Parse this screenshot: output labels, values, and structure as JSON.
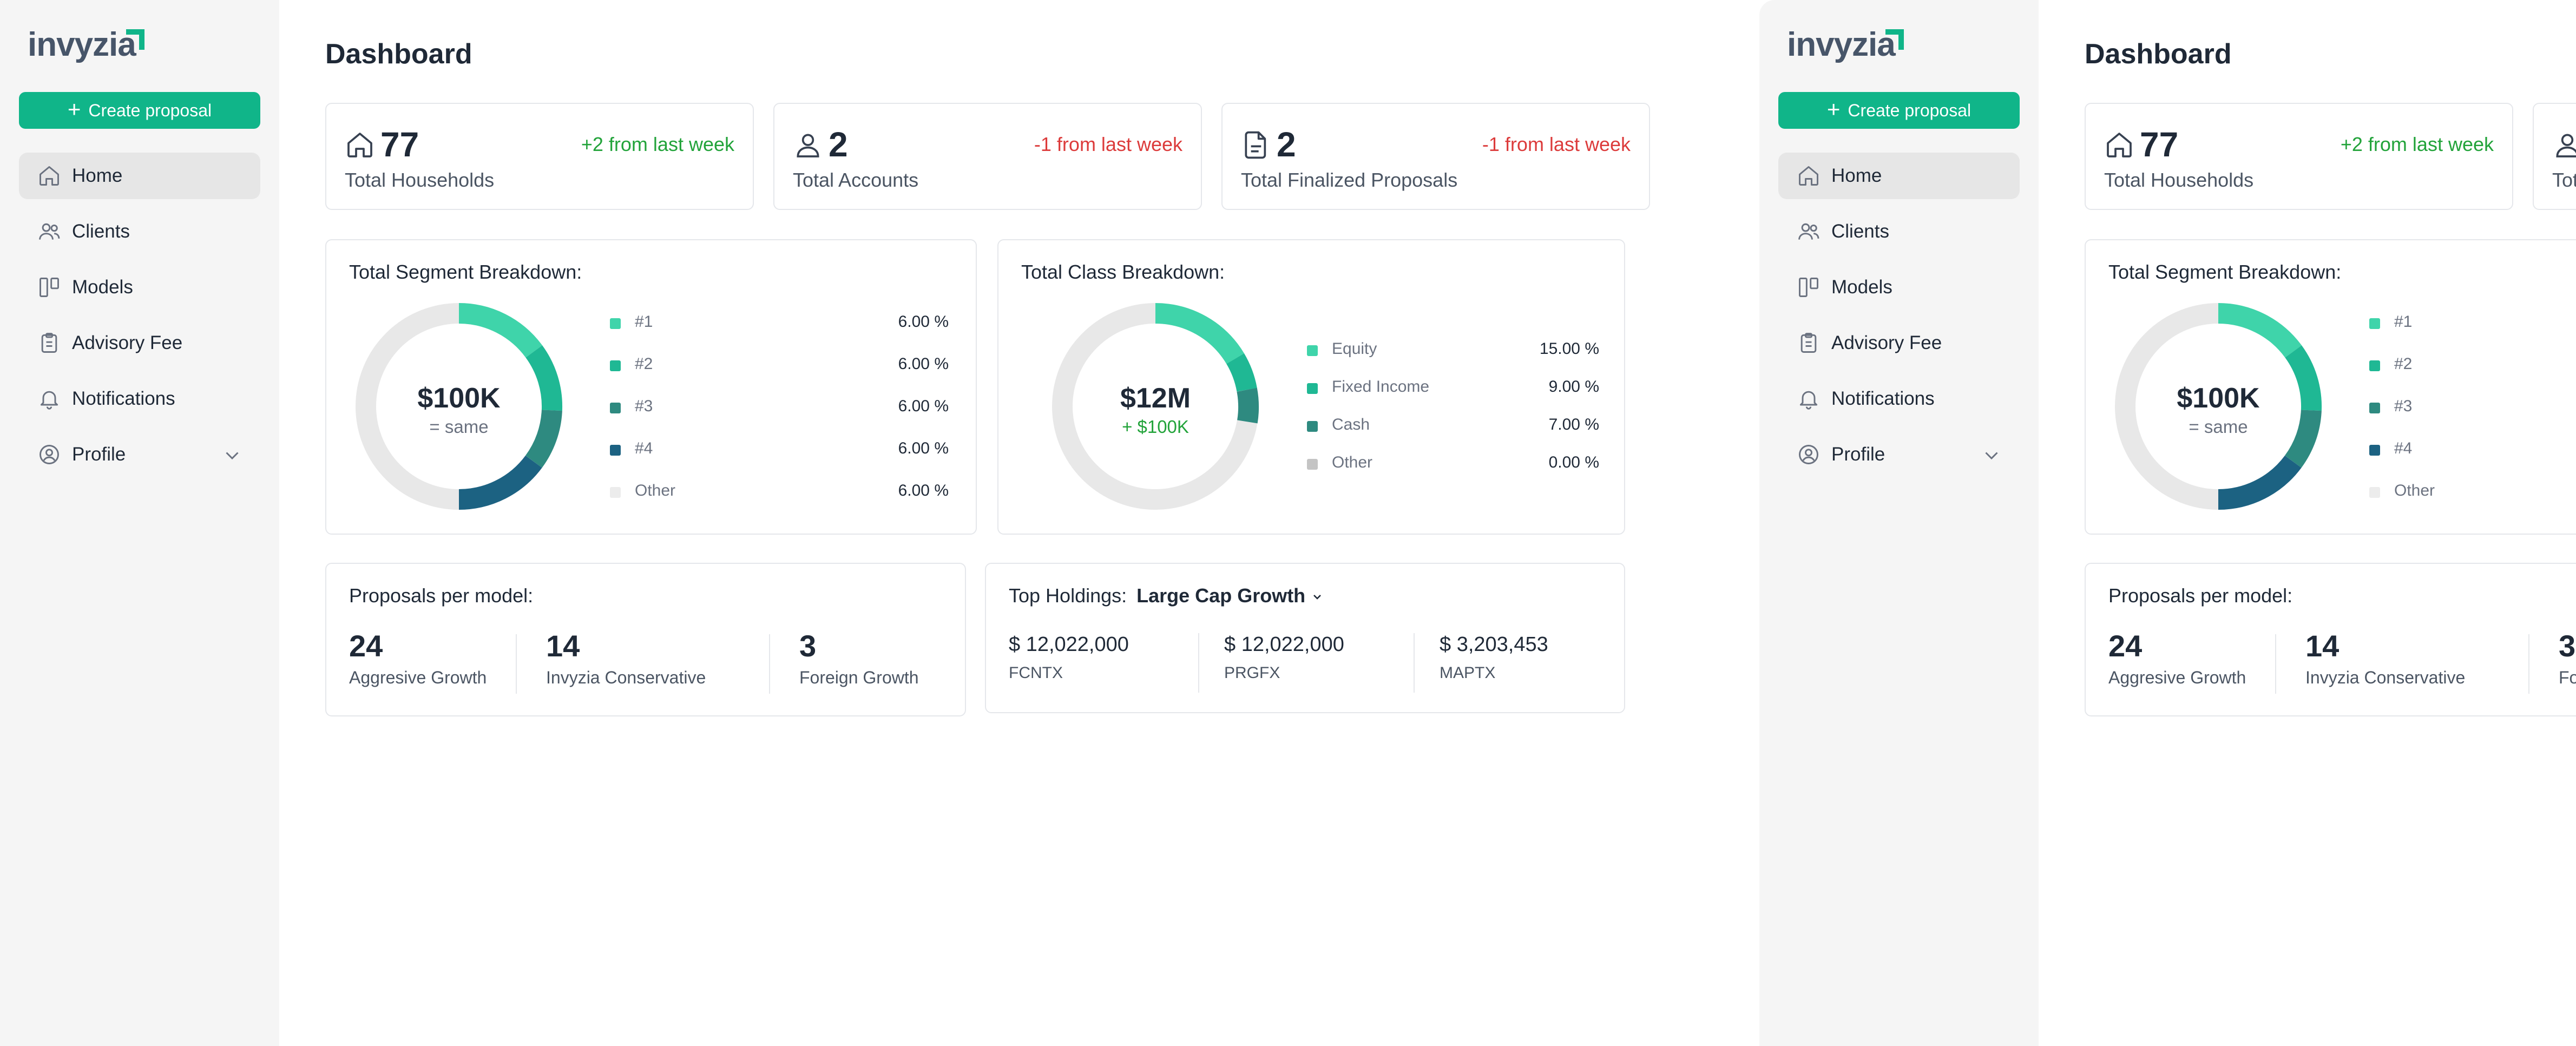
{
  "app": {
    "logo_text": "invyzia",
    "create_button": "Create proposal",
    "page_title": "Dashboard"
  },
  "colors": {
    "brand_green": "#10b589",
    "positive": "#22a33a",
    "negative": "#dc3b3b",
    "segment_1": "#3fd4aa",
    "segment_2": "#1fb894",
    "segment_3": "#2e8a80",
    "segment_4": "#1c6282",
    "other": "#e5e7eb"
  },
  "sidebar": {
    "items": [
      {
        "label": "Home",
        "icon": "home-icon",
        "active": true
      },
      {
        "label": "Clients",
        "icon": "users-icon",
        "active": false
      },
      {
        "label": "Models",
        "icon": "models-icon",
        "active": false
      },
      {
        "label": "Advisory Fee",
        "icon": "clipboard-icon",
        "active": false
      },
      {
        "label": "Notifications",
        "icon": "bell-icon",
        "active": false
      },
      {
        "label": "Profile",
        "icon": "user-circle-icon",
        "active": false
      }
    ]
  },
  "stats": [
    {
      "value": "77",
      "label": "Total Households",
      "delta": "+2 from last week",
      "trend": "up",
      "icon": "home-icon"
    },
    {
      "value": "2",
      "label": "Total Accounts",
      "delta": "-1 from last week",
      "trend": "down",
      "icon": "user-icon"
    },
    {
      "value": "2",
      "label": "Total Finalized Proposals",
      "delta": "-1 from last week",
      "trend": "down",
      "icon": "document-icon"
    }
  ],
  "segment_breakdown": {
    "title": "Total Segment Breakdown:",
    "center_value": "$100K",
    "center_change": "= same",
    "items": [
      {
        "label": "#1",
        "value": "6.00 %"
      },
      {
        "label": "#2",
        "value": "6.00 %"
      },
      {
        "label": "#3",
        "value": "6.00 %"
      },
      {
        "label": "#4",
        "value": "6.00 %"
      },
      {
        "label": "Other",
        "value": "6.00 %"
      }
    ]
  },
  "class_breakdown": {
    "title": "Total Class Breakdown:",
    "center_value": "$12M",
    "center_change": "+ $100K",
    "items": [
      {
        "label": "Equity",
        "value": "15.00 %"
      },
      {
        "label": "Fixed Income",
        "value": "9.00 %"
      },
      {
        "label": "Cash",
        "value": "7.00 %"
      },
      {
        "label": "Other",
        "value": "0.00 %"
      }
    ]
  },
  "proposals_per_model": {
    "title": "Proposals per model:",
    "models": [
      {
        "count": "24",
        "name": "Aggresive Growth"
      },
      {
        "count": "14",
        "name": "Invyzia Conservative"
      },
      {
        "count": "3",
        "name": "Foreign Growth"
      }
    ]
  },
  "top_holdings": {
    "title": "Top Holdings:",
    "selected_model": "Large Cap Growth",
    "holdings": [
      {
        "amount": "$ 12,022,000",
        "symbol": "FCNTX"
      },
      {
        "amount": "$ 12,022,000",
        "symbol": "PRGFX"
      },
      {
        "amount": "$ 3,203,453",
        "symbol": "MAPTX"
      }
    ]
  }
}
